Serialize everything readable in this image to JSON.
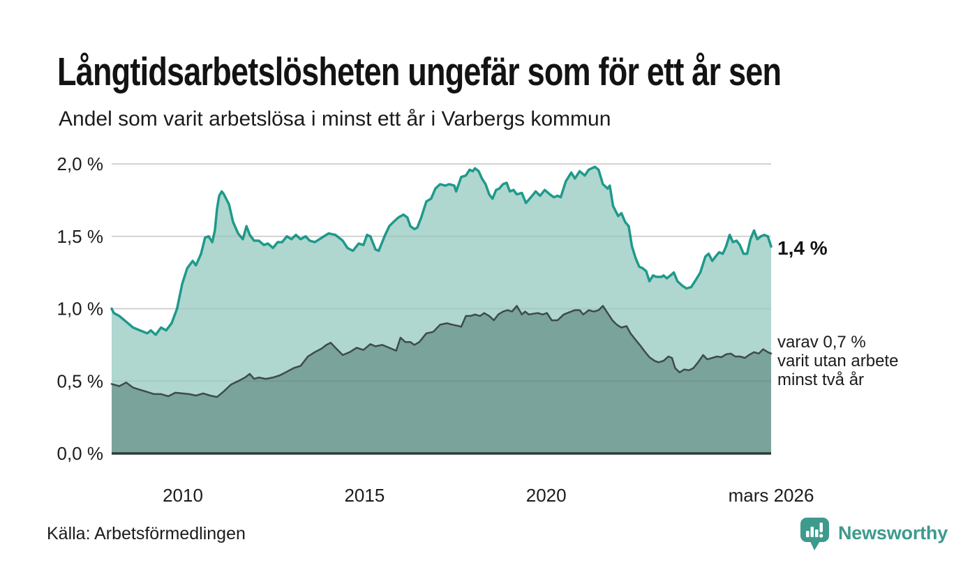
{
  "header": {
    "title": "Långtidsarbetslösheten ungefär som för ett år sen",
    "subtitle": "Andel som varit arbetslösa i minst ett år i Varbergs kommun"
  },
  "annotations": {
    "latest_value": "1,4 %",
    "sub_line1": "varav 0,7 %",
    "sub_line2": "varit utan arbete",
    "sub_line3": "minst två år"
  },
  "footer": {
    "source": "Källa: Arbetsförmedlingen",
    "brand": "Newsworthy"
  },
  "colors": {
    "accent_teal": "#1e9a8a",
    "light_fill": "#b0d6d0",
    "dark_fill": "#7aa39b",
    "dark_stroke": "#3c4c49",
    "baseline": "#2e3c39",
    "grid": "#e0e0e0",
    "text": "#1b1b1b",
    "brand_teal": "#3d9a8d"
  },
  "chart_data": {
    "type": "area",
    "title": "Långtidsarbetslösheten ungefär som för ett år sen",
    "subtitle": "Andel som varit arbetslösa i minst ett år i Varbergs kommun",
    "xlabel": "",
    "ylabel": "",
    "unit": "%",
    "grid": true,
    "legend_position": "direct-labels-right",
    "xlim": [
      2008.04,
      2026.19
    ],
    "ylim": [
      0,
      2.0
    ],
    "grid_color": "#e0e0e0",
    "baseline_color": "#2e3c39",
    "x_ticks": [
      {
        "value": 2010,
        "label": "2010"
      },
      {
        "value": 2015,
        "label": "2015"
      },
      {
        "value": 2020,
        "label": "2020"
      },
      {
        "value": 2026.19,
        "label": "mars 2026"
      }
    ],
    "y_ticks": [
      {
        "value": 0.0,
        "label": "0,0 %"
      },
      {
        "value": 0.5,
        "label": "0,5 %"
      },
      {
        "value": 1.0,
        "label": "1,0 %"
      },
      {
        "value": 1.5,
        "label": "1,5 %"
      },
      {
        "value": 2.0,
        "label": "2,0 %"
      }
    ],
    "series": [
      {
        "name": "Arbetslösa minst ett år",
        "end_label": "1,4 %",
        "stroke": "#1e9a8a",
        "fill": "#b0d6d0",
        "stroke_width": 3.5,
        "points": [
          [
            2008.04,
            1.0
          ],
          [
            2008.1,
            0.97
          ],
          [
            2008.25,
            0.95
          ],
          [
            2008.44,
            0.91
          ],
          [
            2008.63,
            0.87
          ],
          [
            2008.82,
            0.85
          ],
          [
            2009.02,
            0.83
          ],
          [
            2009.12,
            0.85
          ],
          [
            2009.25,
            0.82
          ],
          [
            2009.4,
            0.87
          ],
          [
            2009.54,
            0.85
          ],
          [
            2009.69,
            0.9
          ],
          [
            2009.84,
            1.0
          ],
          [
            2009.98,
            1.17
          ],
          [
            2010.12,
            1.28
          ],
          [
            2010.27,
            1.33
          ],
          [
            2010.36,
            1.3
          ],
          [
            2010.5,
            1.38
          ],
          [
            2010.61,
            1.49
          ],
          [
            2010.71,
            1.5
          ],
          [
            2010.81,
            1.46
          ],
          [
            2010.88,
            1.54
          ],
          [
            2010.94,
            1.69
          ],
          [
            2011.0,
            1.78
          ],
          [
            2011.07,
            1.81
          ],
          [
            2011.13,
            1.79
          ],
          [
            2011.27,
            1.72
          ],
          [
            2011.38,
            1.6
          ],
          [
            2011.52,
            1.52
          ],
          [
            2011.65,
            1.48
          ],
          [
            2011.75,
            1.57
          ],
          [
            2011.84,
            1.51
          ],
          [
            2011.96,
            1.47
          ],
          [
            2012.09,
            1.47
          ],
          [
            2012.23,
            1.44
          ],
          [
            2012.34,
            1.45
          ],
          [
            2012.48,
            1.42
          ],
          [
            2012.61,
            1.46
          ],
          [
            2012.73,
            1.46
          ],
          [
            2012.86,
            1.5
          ],
          [
            2012.99,
            1.48
          ],
          [
            2013.11,
            1.51
          ],
          [
            2013.24,
            1.48
          ],
          [
            2013.38,
            1.5
          ],
          [
            2013.49,
            1.47
          ],
          [
            2013.63,
            1.46
          ],
          [
            2013.76,
            1.48
          ],
          [
            2013.88,
            1.5
          ],
          [
            2014.01,
            1.52
          ],
          [
            2014.2,
            1.51
          ],
          [
            2014.4,
            1.47
          ],
          [
            2014.53,
            1.42
          ],
          [
            2014.68,
            1.4
          ],
          [
            2014.84,
            1.45
          ],
          [
            2014.97,
            1.44
          ],
          [
            2015.07,
            1.51
          ],
          [
            2015.16,
            1.5
          ],
          [
            2015.3,
            1.41
          ],
          [
            2015.39,
            1.4
          ],
          [
            2015.55,
            1.5
          ],
          [
            2015.68,
            1.57
          ],
          [
            2015.8,
            1.6
          ],
          [
            2015.93,
            1.63
          ],
          [
            2016.07,
            1.65
          ],
          [
            2016.18,
            1.63
          ],
          [
            2016.26,
            1.57
          ],
          [
            2016.37,
            1.55
          ],
          [
            2016.45,
            1.56
          ],
          [
            2016.56,
            1.63
          ],
          [
            2016.7,
            1.74
          ],
          [
            2016.83,
            1.76
          ],
          [
            2016.95,
            1.83
          ],
          [
            2017.08,
            1.86
          ],
          [
            2017.22,
            1.85
          ],
          [
            2017.33,
            1.86
          ],
          [
            2017.47,
            1.85
          ],
          [
            2017.52,
            1.81
          ],
          [
            2017.66,
            1.91
          ],
          [
            2017.79,
            1.92
          ],
          [
            2017.89,
            1.96
          ],
          [
            2017.98,
            1.95
          ],
          [
            2018.04,
            1.97
          ],
          [
            2018.14,
            1.95
          ],
          [
            2018.23,
            1.9
          ],
          [
            2018.33,
            1.86
          ],
          [
            2018.43,
            1.79
          ],
          [
            2018.52,
            1.76
          ],
          [
            2018.62,
            1.82
          ],
          [
            2018.71,
            1.83
          ],
          [
            2018.81,
            1.86
          ],
          [
            2018.91,
            1.87
          ],
          [
            2019.0,
            1.81
          ],
          [
            2019.1,
            1.82
          ],
          [
            2019.19,
            1.79
          ],
          [
            2019.33,
            1.8
          ],
          [
            2019.44,
            1.73
          ],
          [
            2019.58,
            1.77
          ],
          [
            2019.71,
            1.81
          ],
          [
            2019.83,
            1.78
          ],
          [
            2019.96,
            1.82
          ],
          [
            2020.1,
            1.79
          ],
          [
            2020.21,
            1.77
          ],
          [
            2020.31,
            1.78
          ],
          [
            2020.4,
            1.77
          ],
          [
            2020.54,
            1.88
          ],
          [
            2020.69,
            1.94
          ],
          [
            2020.79,
            1.9
          ],
          [
            2020.92,
            1.95
          ],
          [
            2021.06,
            1.92
          ],
          [
            2021.17,
            1.96
          ],
          [
            2021.34,
            1.98
          ],
          [
            2021.44,
            1.96
          ],
          [
            2021.56,
            1.86
          ],
          [
            2021.69,
            1.83
          ],
          [
            2021.75,
            1.85
          ],
          [
            2021.84,
            1.71
          ],
          [
            2021.98,
            1.64
          ],
          [
            2022.07,
            1.66
          ],
          [
            2022.17,
            1.6
          ],
          [
            2022.27,
            1.57
          ],
          [
            2022.36,
            1.43
          ],
          [
            2022.46,
            1.35
          ],
          [
            2022.56,
            1.29
          ],
          [
            2022.65,
            1.28
          ],
          [
            2022.75,
            1.26
          ],
          [
            2022.84,
            1.19
          ],
          [
            2022.94,
            1.23
          ],
          [
            2023.03,
            1.22
          ],
          [
            2023.17,
            1.22
          ],
          [
            2023.23,
            1.23
          ],
          [
            2023.32,
            1.21
          ],
          [
            2023.42,
            1.23
          ],
          [
            2023.51,
            1.25
          ],
          [
            2023.61,
            1.19
          ],
          [
            2023.74,
            1.16
          ],
          [
            2023.86,
            1.14
          ],
          [
            2023.99,
            1.15
          ],
          [
            2024.12,
            1.2
          ],
          [
            2024.24,
            1.25
          ],
          [
            2024.38,
            1.36
          ],
          [
            2024.47,
            1.38
          ],
          [
            2024.57,
            1.33
          ],
          [
            2024.66,
            1.36
          ],
          [
            2024.76,
            1.39
          ],
          [
            2024.86,
            1.38
          ],
          [
            2024.95,
            1.43
          ],
          [
            2025.05,
            1.51
          ],
          [
            2025.14,
            1.46
          ],
          [
            2025.24,
            1.47
          ],
          [
            2025.33,
            1.44
          ],
          [
            2025.43,
            1.38
          ],
          [
            2025.53,
            1.38
          ],
          [
            2025.62,
            1.48
          ],
          [
            2025.72,
            1.54
          ],
          [
            2025.81,
            1.48
          ],
          [
            2025.91,
            1.5
          ],
          [
            2026.0,
            1.51
          ],
          [
            2026.1,
            1.5
          ],
          [
            2026.19,
            1.43
          ]
        ]
      },
      {
        "name": "Varav utan arbete minst två år",
        "end_label": "varav 0,7 % varit utan arbete minst två år",
        "stroke": "#3c4c49",
        "fill": "#7aa39b",
        "stroke_width": 2.5,
        "points": [
          [
            2008.04,
            0.48
          ],
          [
            2008.25,
            0.465
          ],
          [
            2008.44,
            0.49
          ],
          [
            2008.63,
            0.455
          ],
          [
            2008.82,
            0.44
          ],
          [
            2009.02,
            0.425
          ],
          [
            2009.21,
            0.41
          ],
          [
            2009.4,
            0.41
          ],
          [
            2009.6,
            0.395
          ],
          [
            2009.79,
            0.42
          ],
          [
            2009.98,
            0.415
          ],
          [
            2010.17,
            0.41
          ],
          [
            2010.36,
            0.4
          ],
          [
            2010.56,
            0.415
          ],
          [
            2010.75,
            0.4
          ],
          [
            2010.94,
            0.39
          ],
          [
            2011.13,
            0.43
          ],
          [
            2011.32,
            0.475
          ],
          [
            2011.52,
            0.5
          ],
          [
            2011.71,
            0.525
          ],
          [
            2011.84,
            0.55
          ],
          [
            2011.96,
            0.515
          ],
          [
            2012.09,
            0.525
          ],
          [
            2012.28,
            0.515
          ],
          [
            2012.48,
            0.525
          ],
          [
            2012.67,
            0.54
          ],
          [
            2012.86,
            0.565
          ],
          [
            2013.05,
            0.59
          ],
          [
            2013.24,
            0.605
          ],
          [
            2013.44,
            0.67
          ],
          [
            2013.63,
            0.7
          ],
          [
            2013.82,
            0.725
          ],
          [
            2013.95,
            0.75
          ],
          [
            2014.07,
            0.765
          ],
          [
            2014.2,
            0.73
          ],
          [
            2014.4,
            0.68
          ],
          [
            2014.59,
            0.7
          ],
          [
            2014.78,
            0.73
          ],
          [
            2014.97,
            0.715
          ],
          [
            2015.16,
            0.755
          ],
          [
            2015.3,
            0.74
          ],
          [
            2015.49,
            0.75
          ],
          [
            2015.68,
            0.73
          ],
          [
            2015.87,
            0.71
          ],
          [
            2015.99,
            0.8
          ],
          [
            2016.12,
            0.77
          ],
          [
            2016.26,
            0.77
          ],
          [
            2016.37,
            0.75
          ],
          [
            2016.51,
            0.77
          ],
          [
            2016.7,
            0.83
          ],
          [
            2016.89,
            0.84
          ],
          [
            2017.08,
            0.89
          ],
          [
            2017.27,
            0.9
          ],
          [
            2017.41,
            0.89
          ],
          [
            2017.6,
            0.88
          ],
          [
            2017.66,
            0.875
          ],
          [
            2017.79,
            0.95
          ],
          [
            2017.91,
            0.95
          ],
          [
            2018.04,
            0.96
          ],
          [
            2018.18,
            0.95
          ],
          [
            2018.29,
            0.97
          ],
          [
            2018.43,
            0.95
          ],
          [
            2018.56,
            0.92
          ],
          [
            2018.68,
            0.96
          ],
          [
            2018.81,
            0.98
          ],
          [
            2018.94,
            0.99
          ],
          [
            2019.06,
            0.98
          ],
          [
            2019.19,
            1.02
          ],
          [
            2019.33,
            0.96
          ],
          [
            2019.42,
            0.98
          ],
          [
            2019.52,
            0.96
          ],
          [
            2019.63,
            0.965
          ],
          [
            2019.77,
            0.97
          ],
          [
            2019.9,
            0.96
          ],
          [
            2020.02,
            0.97
          ],
          [
            2020.15,
            0.92
          ],
          [
            2020.31,
            0.92
          ],
          [
            2020.48,
            0.96
          ],
          [
            2020.63,
            0.975
          ],
          [
            2020.79,
            0.99
          ],
          [
            2020.92,
            0.99
          ],
          [
            2021.02,
            0.96
          ],
          [
            2021.17,
            0.99
          ],
          [
            2021.31,
            0.98
          ],
          [
            2021.44,
            0.99
          ],
          [
            2021.56,
            1.02
          ],
          [
            2021.69,
            0.97
          ],
          [
            2021.82,
            0.92
          ],
          [
            2021.94,
            0.89
          ],
          [
            2022.07,
            0.87
          ],
          [
            2022.21,
            0.88
          ],
          [
            2022.32,
            0.83
          ],
          [
            2022.46,
            0.785
          ],
          [
            2022.59,
            0.745
          ],
          [
            2022.71,
            0.705
          ],
          [
            2022.84,
            0.665
          ],
          [
            2022.98,
            0.64
          ],
          [
            2023.09,
            0.63
          ],
          [
            2023.23,
            0.64
          ],
          [
            2023.36,
            0.67
          ],
          [
            2023.46,
            0.66
          ],
          [
            2023.55,
            0.59
          ],
          [
            2023.67,
            0.56
          ],
          [
            2023.8,
            0.58
          ],
          [
            2023.93,
            0.575
          ],
          [
            2024.05,
            0.59
          ],
          [
            2024.18,
            0.63
          ],
          [
            2024.32,
            0.68
          ],
          [
            2024.43,
            0.65
          ],
          [
            2024.57,
            0.66
          ],
          [
            2024.7,
            0.67
          ],
          [
            2024.82,
            0.665
          ],
          [
            2024.95,
            0.685
          ],
          [
            2025.08,
            0.69
          ],
          [
            2025.2,
            0.67
          ],
          [
            2025.33,
            0.67
          ],
          [
            2025.47,
            0.66
          ],
          [
            2025.58,
            0.68
          ],
          [
            2025.72,
            0.7
          ],
          [
            2025.85,
            0.69
          ],
          [
            2025.97,
            0.72
          ],
          [
            2026.1,
            0.7
          ],
          [
            2026.19,
            0.69
          ]
        ]
      }
    ]
  }
}
